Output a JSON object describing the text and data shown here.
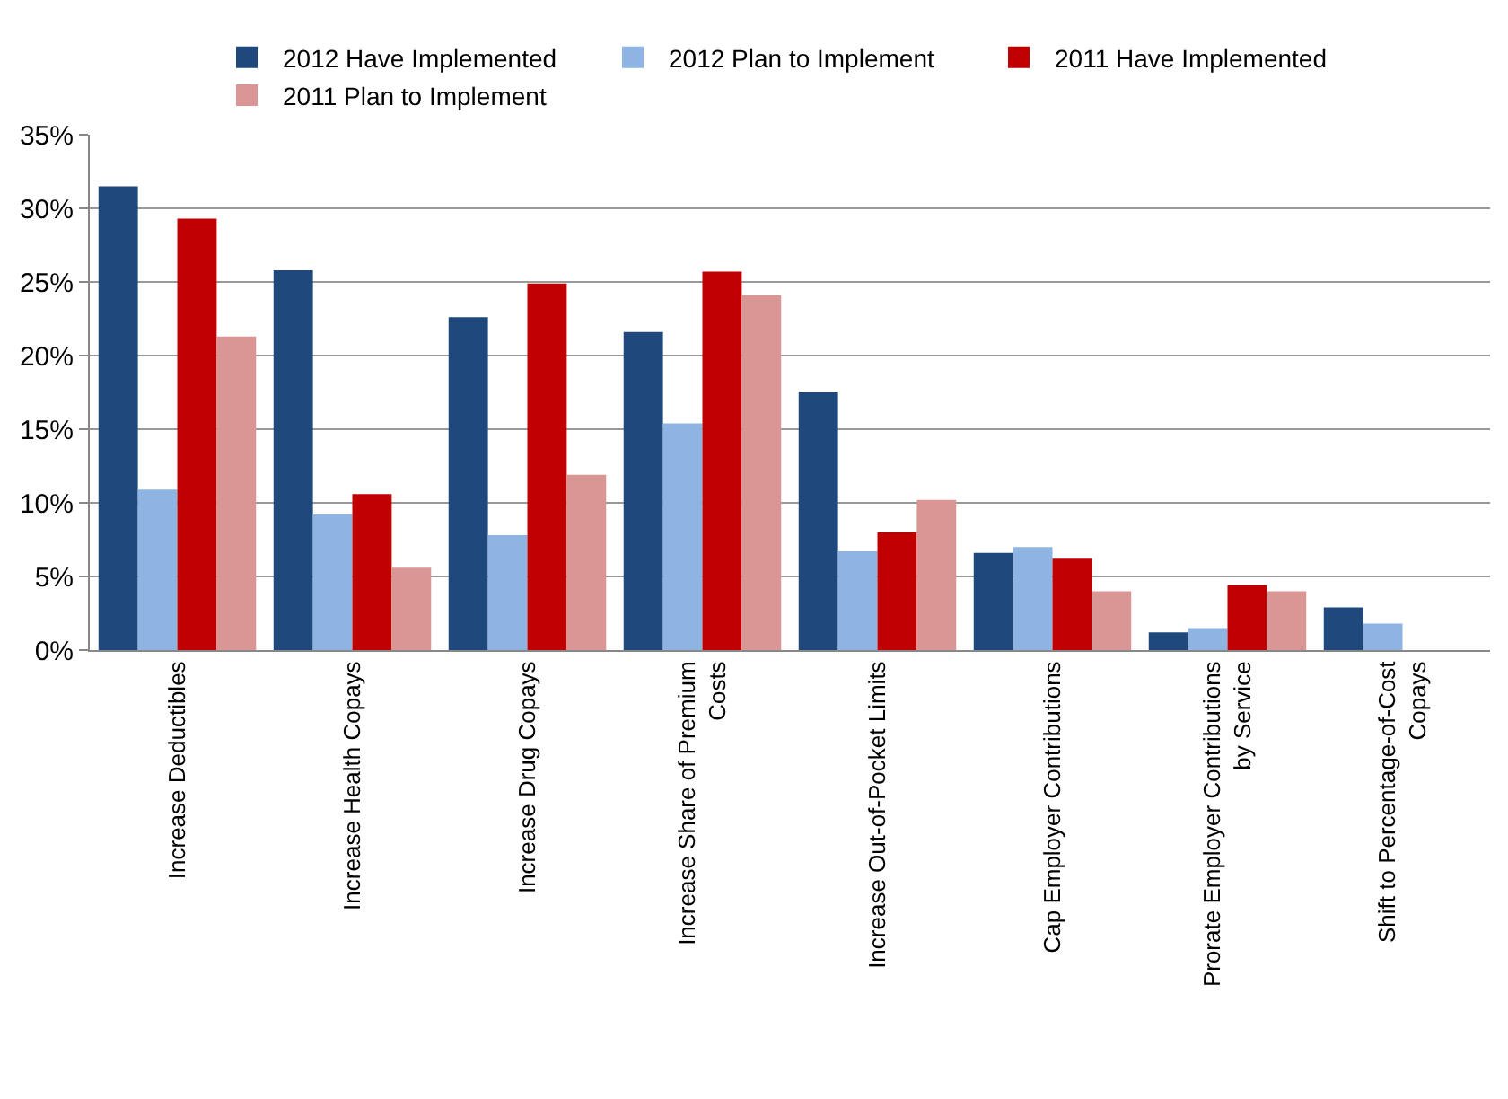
{
  "chart_data": {
    "type": "bar",
    "categories": [
      "Increase Deductibles",
      "Increase Health Copays",
      "Increase Drug Copays",
      "Increase Share of Premium Costs",
      "Increase Out-of-Pocket Limits",
      "Cap Employer Contributions",
      "Prorate Employer Contributions by Service",
      "Shift to Percentage-of-Cost Copays"
    ],
    "series": [
      {
        "name": "2012 Have Implemented",
        "color": "#1f497d",
        "values": [
          31.5,
          25.8,
          22.6,
          21.6,
          17.5,
          6.6,
          1.2,
          2.9
        ]
      },
      {
        "name": "2012 Plan to Implement",
        "color": "#8eb4e3",
        "values": [
          10.9,
          9.2,
          7.8,
          15.4,
          6.7,
          7.0,
          1.5,
          1.8
        ]
      },
      {
        "name": "2011 Have Implemented",
        "color": "#c00000",
        "values": [
          29.3,
          10.6,
          24.9,
          25.7,
          8.0,
          6.2,
          4.4,
          null
        ]
      },
      {
        "name": "2011 Plan to Implement",
        "color": "#d99694",
        "values": [
          21.3,
          5.6,
          11.9,
          24.1,
          10.2,
          4.0,
          4.0,
          null
        ]
      }
    ],
    "ylim": [
      0,
      35
    ],
    "yticks": [
      {
        "value": 0,
        "label": "0%"
      },
      {
        "value": 5,
        "label": "5%"
      },
      {
        "value": 10,
        "label": "10%"
      },
      {
        "value": 15,
        "label": "15%"
      },
      {
        "value": 20,
        "label": "20%"
      },
      {
        "value": 25,
        "label": "25%"
      },
      {
        "value": 30,
        "label": "30%"
      },
      {
        "value": 35,
        "label": "35%"
      }
    ],
    "grid": "y",
    "legend": "top"
  }
}
